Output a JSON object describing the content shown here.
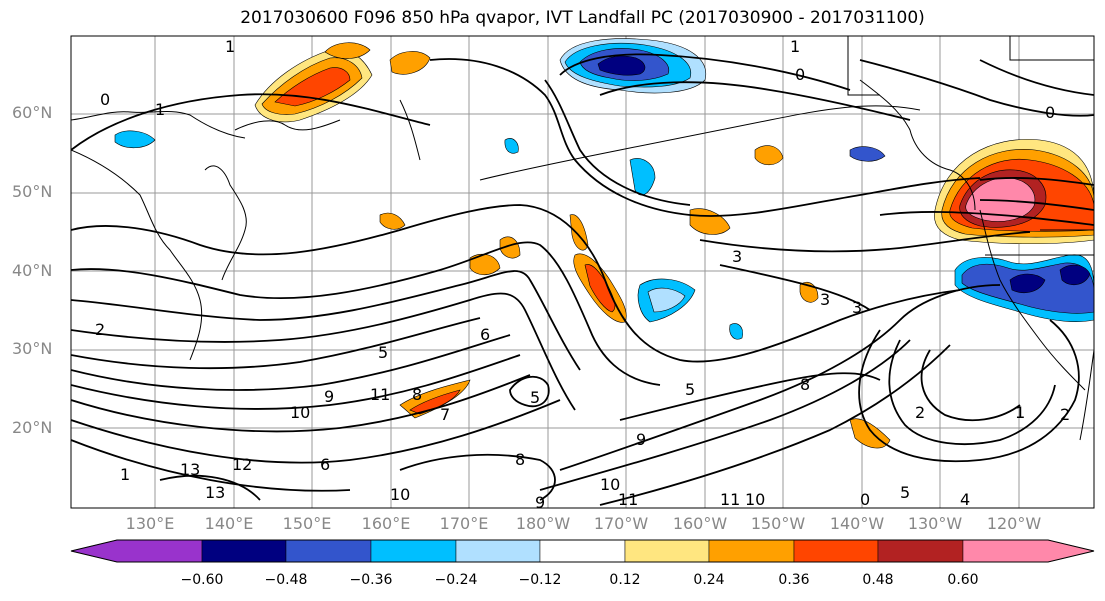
{
  "title": "2017030600 F096 850 hPa qvapor, IVT Landfall PC (2017030900 - 2017031100)",
  "lat_labels": [
    "60°N",
    "50°N",
    "40°N",
    "30°N",
    "20°N"
  ],
  "lon_labels": [
    "130°E",
    "140°E",
    "150°E",
    "160°E",
    "170°E",
    "180°W",
    "170°W",
    "160°W",
    "150°W",
    "140°W",
    "130°W",
    "120°W"
  ],
  "colorbar": {
    "ticks": [
      "−0.60",
      "−0.48",
      "−0.36",
      "−0.24",
      "−0.12",
      "0.12",
      "0.24",
      "0.36",
      "0.48",
      "0.60"
    ],
    "colors": [
      "#9933cc",
      "#000080",
      "#3355cc",
      "#00bfff",
      "#b0e0ff",
      "#ffffff",
      "#ffe680",
      "#ffa000",
      "#ff4500",
      "#b22222",
      "#ff88aa"
    ]
  },
  "contour_labels": [
    "0",
    "1",
    "1",
    "0",
    "1",
    "0",
    "3",
    "3",
    "2",
    "2",
    "5",
    "6",
    "5",
    "8",
    "9",
    "10",
    "11",
    "10",
    "13",
    "13",
    "12",
    "11",
    "10",
    "9",
    "8",
    "7",
    "6",
    "5",
    "3",
    "2",
    "1",
    "2",
    "1",
    "9",
    "10",
    "8",
    "1",
    "0",
    "11",
    "5",
    "4"
  ]
}
